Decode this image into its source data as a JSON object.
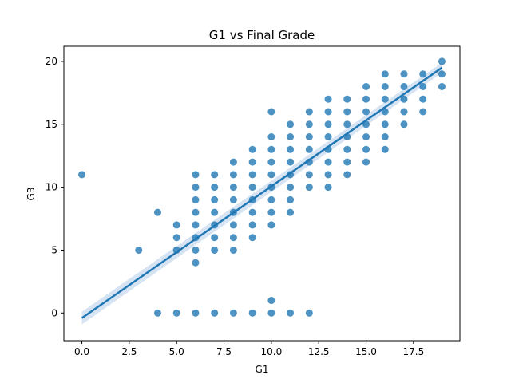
{
  "chart_data": {
    "type": "scatter",
    "title": "G1 vs Final Grade",
    "xlabel": "G1",
    "ylabel": "G3",
    "xlim": [
      -0.95,
      19.95
    ],
    "ylim": [
      -2.2,
      21.2
    ],
    "xticks": [
      0,
      2.5,
      5,
      7.5,
      10,
      12.5,
      15,
      17.5
    ],
    "xtick_labels": [
      "0.0",
      "2.5",
      "5.0",
      "7.5",
      "10.0",
      "12.5",
      "15.0",
      "17.5"
    ],
    "yticks": [
      0,
      5,
      10,
      15,
      20
    ],
    "ytick_labels": [
      "0",
      "5",
      "10",
      "15",
      "20"
    ],
    "grid": false,
    "legend": "none",
    "colors": {
      "points": "#1f77b4",
      "line": "#1f77b4",
      "band": "#aec7e8"
    },
    "regression": {
      "x": [
        0,
        19
      ],
      "y": [
        -0.4,
        19.5
      ],
      "ci_lower": [
        -0.9,
        19.1
      ],
      "ci_upper": [
        0.1,
        19.9
      ]
    },
    "points": [
      [
        0,
        11
      ],
      [
        3,
        5
      ],
      [
        4,
        8
      ],
      [
        4,
        0
      ],
      [
        5,
        7
      ],
      [
        5,
        6
      ],
      [
        5,
        5
      ],
      [
        5,
        0
      ],
      [
        6,
        11
      ],
      [
        6,
        10
      ],
      [
        6,
        9
      ],
      [
        6,
        8
      ],
      [
        6,
        7
      ],
      [
        6,
        6
      ],
      [
        6,
        5
      ],
      [
        6,
        4
      ],
      [
        6,
        0
      ],
      [
        7,
        11
      ],
      [
        7,
        10
      ],
      [
        7,
        9
      ],
      [
        7,
        8
      ],
      [
        7,
        7
      ],
      [
        7,
        6
      ],
      [
        7,
        5
      ],
      [
        7,
        0
      ],
      [
        8,
        12
      ],
      [
        8,
        11
      ],
      [
        8,
        10
      ],
      [
        8,
        9
      ],
      [
        8,
        8
      ],
      [
        8,
        7
      ],
      [
        8,
        6
      ],
      [
        8,
        5
      ],
      [
        8,
        0
      ],
      [
        9,
        13
      ],
      [
        9,
        12
      ],
      [
        9,
        11
      ],
      [
        9,
        10
      ],
      [
        9,
        9
      ],
      [
        9,
        8
      ],
      [
        9,
        7
      ],
      [
        9,
        6
      ],
      [
        9,
        0
      ],
      [
        10,
        16
      ],
      [
        10,
        14
      ],
      [
        10,
        13
      ],
      [
        10,
        12
      ],
      [
        10,
        11
      ],
      [
        10,
        10
      ],
      [
        10,
        9
      ],
      [
        10,
        8
      ],
      [
        10,
        7
      ],
      [
        10,
        1
      ],
      [
        10,
        0
      ],
      [
        11,
        15
      ],
      [
        11,
        14
      ],
      [
        11,
        13
      ],
      [
        11,
        12
      ],
      [
        11,
        11
      ],
      [
        11,
        10
      ],
      [
        11,
        9
      ],
      [
        11,
        8
      ],
      [
        11,
        0
      ],
      [
        12,
        16
      ],
      [
        12,
        15
      ],
      [
        12,
        14
      ],
      [
        12,
        13
      ],
      [
        12,
        12
      ],
      [
        12,
        11
      ],
      [
        12,
        10
      ],
      [
        12,
        0
      ],
      [
        13,
        17
      ],
      [
        13,
        16
      ],
      [
        13,
        15
      ],
      [
        13,
        14
      ],
      [
        13,
        13
      ],
      [
        13,
        12
      ],
      [
        13,
        11
      ],
      [
        13,
        10
      ],
      [
        14,
        17
      ],
      [
        14,
        16
      ],
      [
        14,
        15
      ],
      [
        14,
        14
      ],
      [
        14,
        13
      ],
      [
        14,
        12
      ],
      [
        14,
        11
      ],
      [
        15,
        18
      ],
      [
        15,
        17
      ],
      [
        15,
        16
      ],
      [
        15,
        15
      ],
      [
        15,
        14
      ],
      [
        15,
        13
      ],
      [
        15,
        12
      ],
      [
        16,
        19
      ],
      [
        16,
        18
      ],
      [
        16,
        17
      ],
      [
        16,
        16
      ],
      [
        16,
        15
      ],
      [
        16,
        14
      ],
      [
        16,
        13
      ],
      [
        17,
        19
      ],
      [
        17,
        18
      ],
      [
        17,
        17
      ],
      [
        17,
        16
      ],
      [
        17,
        15
      ],
      [
        18,
        19
      ],
      [
        18,
        18
      ],
      [
        18,
        17
      ],
      [
        18,
        16
      ],
      [
        19,
        20
      ],
      [
        19,
        19
      ],
      [
        19,
        18
      ]
    ]
  }
}
